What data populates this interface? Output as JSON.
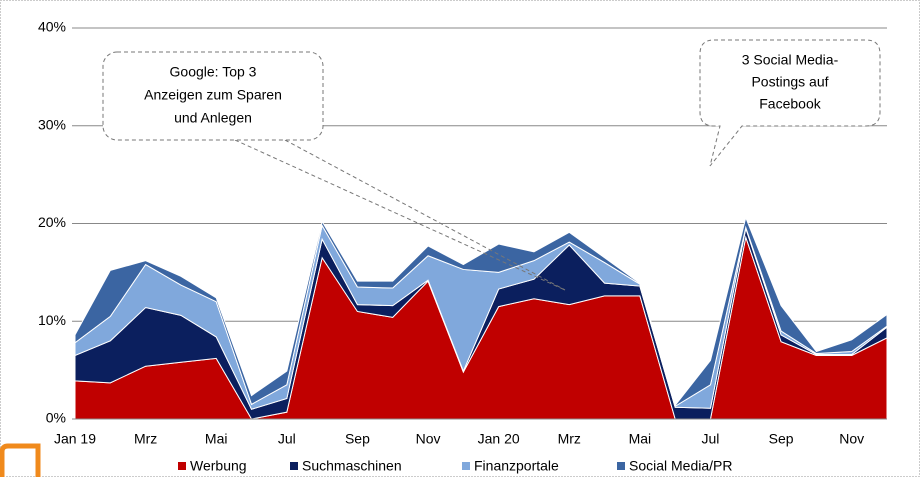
{
  "chart_data": {
    "type": "stacked_area",
    "categories": [
      "Jan 19",
      null,
      "Mrz",
      null,
      "Mai",
      null,
      "Jul",
      null,
      "Sep",
      null,
      "Nov",
      null,
      "Jan 20",
      null,
      "Mrz",
      null,
      "Mai",
      null,
      "Jul",
      null,
      "Sep",
      null,
      "Nov",
      null
    ],
    "series": [
      {
        "name": "Werbung",
        "color": "#c00000",
        "values": [
          3.9,
          3.7,
          5.4,
          5.8,
          6.2,
          0,
          0.7,
          16.5,
          11.0,
          10.4,
          14.1,
          4.8,
          11.5,
          12.3,
          11.7,
          12.6,
          12.6,
          0,
          0,
          18.6,
          7.9,
          6.5,
          6.5,
          8.3
        ]
      },
      {
        "name": "Suchmaschinen",
        "color": "#0b1f5e",
        "values": [
          2.6,
          4.3,
          6.0,
          4.8,
          2.2,
          1.0,
          1.4,
          1.9,
          0.7,
          1.2,
          0.1,
          0.1,
          1.8,
          2.0,
          6.1,
          1.3,
          1.0,
          1.2,
          1.1,
          0.9,
          0.7,
          0.1,
          0.1,
          1.1
        ]
      },
      {
        "name": "Finanzportale",
        "color": "#80a8dc",
        "values": [
          1.3,
          2.5,
          4.4,
          3.1,
          3.6,
          0.5,
          1.4,
          1.4,
          1.8,
          1.8,
          2.5,
          10.4,
          1.7,
          1.9,
          0.3,
          2.1,
          0.2,
          0.1,
          2.4,
          0.1,
          0.4,
          0.1,
          0.3,
          0.1
        ]
      },
      {
        "name": "Social Media/PR",
        "color": "#3b65a2",
        "values": [
          0.8,
          4.7,
          0.4,
          0.9,
          0.4,
          0.9,
          1.4,
          0.4,
          0.6,
          0.7,
          1.0,
          0.5,
          2.9,
          0.9,
          1.0,
          0.5,
          0.1,
          0.1,
          2.5,
          1.0,
          2.6,
          0.2,
          1.2,
          1.2
        ]
      }
    ],
    "ylim": [
      0,
      40
    ],
    "yticks": [
      {
        "value": 0,
        "label": "0%"
      },
      {
        "value": 10,
        "label": "10%"
      },
      {
        "value": 20,
        "label": "20%"
      },
      {
        "value": 30,
        "label": "30%"
      },
      {
        "value": 40,
        "label": "40%"
      }
    ],
    "grid": true,
    "annotations": [
      {
        "lines": [
          "Google: Top 3",
          "Anzeigen zum Sparen",
          "und Anlegen"
        ]
      },
      {
        "lines": [
          "3 Social Media-",
          "Postings auf",
          "Facebook"
        ]
      }
    ]
  }
}
